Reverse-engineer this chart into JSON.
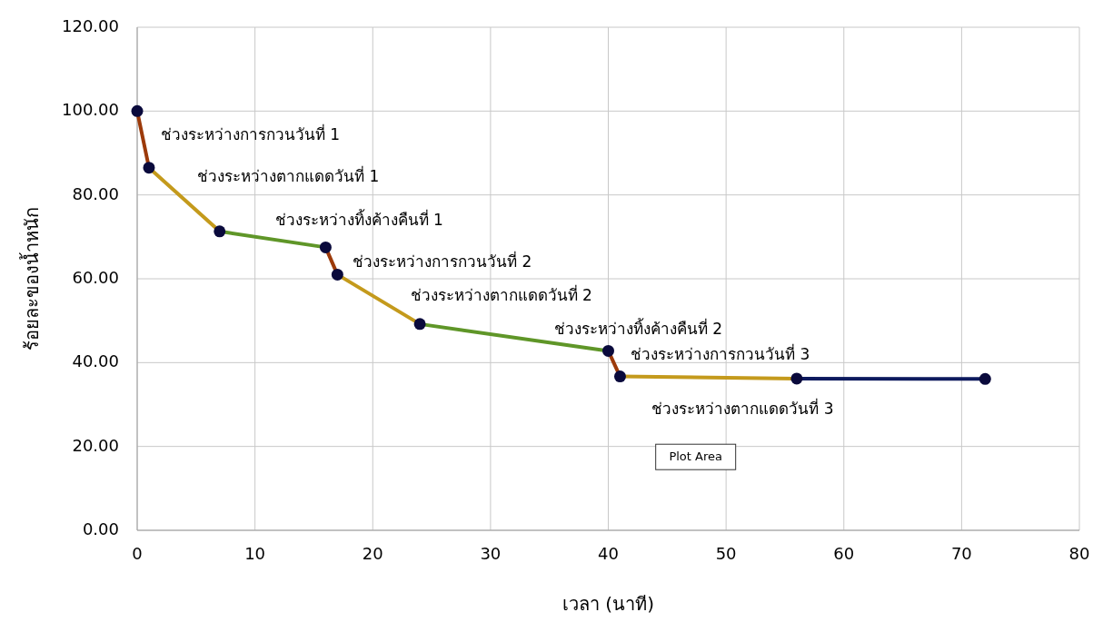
{
  "chart_data": {
    "type": "line",
    "xlabel": "เวลา (นาที)",
    "ylabel": "ร้อยละของน้ำหนัก",
    "xlim": [
      0,
      80
    ],
    "xticks": [
      0,
      10,
      20,
      30,
      40,
      50,
      60,
      70,
      80
    ],
    "ylim": [
      0,
      120
    ],
    "yticks": [
      {
        "value": 0,
        "label": "0.00"
      },
      {
        "value": 20,
        "label": "20.00"
      },
      {
        "value": 40,
        "label": "40.00"
      },
      {
        "value": 60,
        "label": "60.00"
      },
      {
        "value": 80,
        "label": "80.00"
      },
      {
        "value": 100,
        "label": "100.00"
      },
      {
        "value": 120,
        "label": "120.00"
      }
    ],
    "grid": true,
    "series": [
      {
        "type": "line",
        "color": "#9c3a0a",
        "x": [
          0,
          1
        ],
        "values": [
          100,
          86.5
        ]
      },
      {
        "type": "line",
        "color": "#c49a1c",
        "x": [
          1,
          7
        ],
        "values": [
          86.5,
          71.3
        ]
      },
      {
        "type": "line",
        "color": "#5f9628",
        "x": [
          7,
          16
        ],
        "values": [
          71.3,
          67.5
        ]
      },
      {
        "type": "line",
        "color": "#9c3a0a",
        "x": [
          16,
          17
        ],
        "values": [
          67.5,
          61
        ]
      },
      {
        "type": "line",
        "color": "#c49a1c",
        "x": [
          17,
          24
        ],
        "values": [
          61,
          49.2
        ]
      },
      {
        "type": "line",
        "color": "#5f9628",
        "x": [
          24,
          40
        ],
        "values": [
          49.2,
          42.8
        ]
      },
      {
        "type": "line",
        "color": "#9c3a0a",
        "x": [
          40,
          41
        ],
        "values": [
          42.8,
          36.7
        ]
      },
      {
        "type": "line",
        "color": "#c49a1c",
        "x": [
          41,
          56
        ],
        "values": [
          36.7,
          36.2
        ]
      },
      {
        "type": "line",
        "color": "#0d1a5e",
        "x": [
          56,
          72
        ],
        "values": [
          36.2,
          36.1
        ]
      },
      {
        "type": "scatter",
        "color": "#0a0a3c",
        "marker": "circle",
        "x": [
          0,
          1,
          7,
          16,
          17,
          24,
          40,
          41,
          56,
          72
        ],
        "values": [
          100,
          86.5,
          71.3,
          67.5,
          61,
          49.2,
          42.8,
          36.7,
          36.2,
          36.1
        ]
      }
    ],
    "annotations": [
      "ช่วงระหว่างการกวนวันที่ 1",
      "ช่วงระหว่างตากแดดวันที่ 1",
      "ช่วงระหว่างทิ้งค้างคืนที่ 1",
      "ช่วงระหว่างการกวนวันที่ 2",
      "ช่วงระหว่างตากแดดวันที่ 2",
      "ช่วงระหว่างทิ้งค้างคืนที่ 2",
      "ช่วงระหว่างการกวนวันที่ 3",
      "ช่วงระหว่างตากแดดวันที่ 3",
      "Plot Area"
    ]
  }
}
